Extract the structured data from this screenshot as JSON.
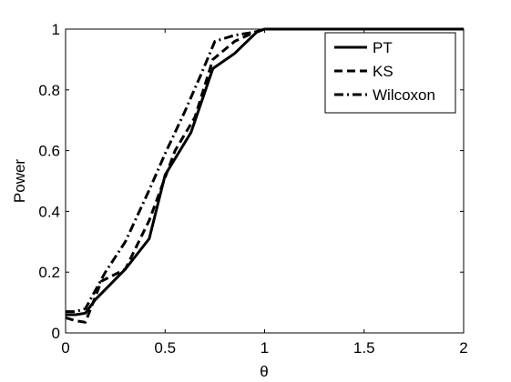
{
  "chart_data": {
    "type": "line",
    "title": "",
    "xlabel": "θ",
    "ylabel": "Power",
    "xlim": [
      0,
      2
    ],
    "ylim": [
      0,
      1
    ],
    "xticks": [
      0,
      0.5,
      1,
      1.5,
      2
    ],
    "xtick_labels": [
      "0",
      "0.5",
      "1",
      "1.5",
      "2"
    ],
    "yticks": [
      0,
      0.2,
      0.4,
      0.6,
      0.8,
      1
    ],
    "ytick_labels": [
      "0",
      "0.2",
      "0.4",
      "0.6",
      "0.8",
      "1"
    ],
    "grid": false,
    "legend_position": "top-right",
    "series": [
      {
        "name": "PT",
        "style": "solid",
        "color": "#000000",
        "x": [
          0,
          0.05,
          0.1,
          0.15,
          0.3,
          0.42,
          0.5,
          0.63,
          0.74,
          0.85,
          0.96,
          1.0,
          1.2,
          2.0
        ],
        "y": [
          0.06,
          0.06,
          0.065,
          0.11,
          0.21,
          0.31,
          0.52,
          0.66,
          0.87,
          0.92,
          0.99,
          1.0,
          1.0,
          1.0
        ]
      },
      {
        "name": "KS",
        "style": "dashed",
        "color": "#000000",
        "x": [
          0,
          0.05,
          0.1,
          0.18,
          0.3,
          0.42,
          0.55,
          0.65,
          0.74,
          0.85,
          0.95,
          1.0,
          1.3,
          2.0
        ],
        "y": [
          0.05,
          0.04,
          0.035,
          0.17,
          0.21,
          0.37,
          0.6,
          0.71,
          0.9,
          0.96,
          0.99,
          1.0,
          1.0,
          1.0
        ]
      },
      {
        "name": "Wilcoxon",
        "style": "dashdot",
        "color": "#000000",
        "x": [
          0,
          0.05,
          0.1,
          0.2,
          0.3,
          0.42,
          0.5,
          0.6,
          0.68,
          0.75,
          0.85,
          0.95,
          1.0,
          1.35,
          2.0
        ],
        "y": [
          0.07,
          0.07,
          0.08,
          0.2,
          0.3,
          0.47,
          0.59,
          0.73,
          0.85,
          0.96,
          0.98,
          0.99,
          1.0,
          1.0,
          1.0
        ]
      }
    ]
  }
}
